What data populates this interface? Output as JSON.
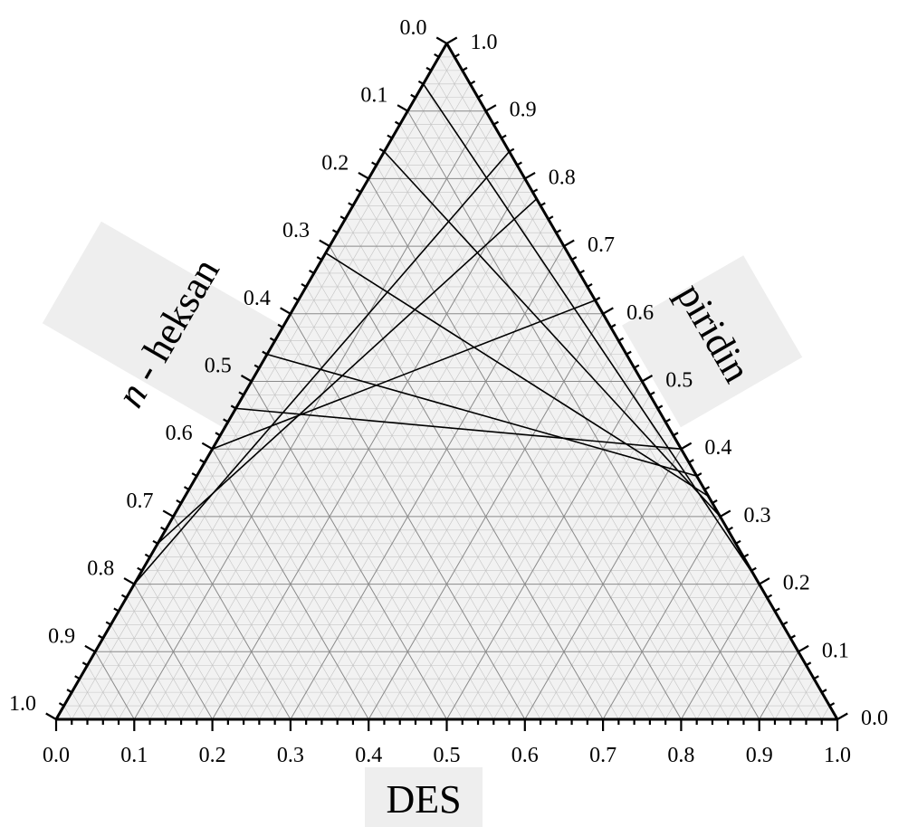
{
  "chart_data": {
    "type": "ternary",
    "axes": {
      "bottom": {
        "title": "DES",
        "ticks": [
          "0.0",
          "0.1",
          "0.2",
          "0.3",
          "0.4",
          "0.5",
          "0.6",
          "0.7",
          "0.8",
          "0.9",
          "1.0"
        ]
      },
      "left": {
        "title_italic": "n",
        "title_rest": " - heksan",
        "ticks": [
          "0.0",
          "0.1",
          "0.2",
          "0.3",
          "0.4",
          "0.5",
          "0.6",
          "0.7",
          "0.8",
          "0.9",
          "1.0"
        ]
      },
      "right": {
        "title": "piridin",
        "ticks": [
          "0.0",
          "0.1",
          "0.2",
          "0.3",
          "0.4",
          "0.5",
          "0.6",
          "0.7",
          "0.8",
          "0.9",
          "1.0"
        ]
      }
    },
    "grid": true,
    "tie_lines": [
      {
        "left": {
          "heksan": 0.8,
          "piridin": 0.2
        },
        "right": {
          "DES": 0.16,
          "piridin": 0.84
        }
      },
      {
        "left": {
          "heksan": 0.74,
          "piridin": 0.26
        },
        "right": {
          "DES": 0.23,
          "piridin": 0.77
        }
      },
      {
        "left": {
          "heksan": 0.6,
          "piridin": 0.4
        },
        "right": {
          "DES": 0.38,
          "piridin": 0.62
        }
      },
      {
        "left": {
          "heksan": 0.54,
          "piridin": 0.46
        },
        "right": {
          "DES": 0.6,
          "piridin": 0.4
        }
      },
      {
        "left": {
          "heksan": 0.46,
          "piridin": 0.54
        },
        "right": {
          "DES": 0.64,
          "piridin": 0.36
        }
      },
      {
        "left": {
          "heksan": 0.31,
          "piridin": 0.69
        },
        "right": {
          "DES": 0.67,
          "piridin": 0.33
        }
      },
      {
        "left": {
          "heksan": 0.16,
          "piridin": 0.84
        },
        "right": {
          "DES": 0.7,
          "piridin": 0.3
        }
      },
      {
        "left": {
          "heksan": 0.06,
          "piridin": 0.94
        },
        "right": {
          "DES": 0.79,
          "piridin": 0.21
        }
      },
      {
        "left": {
          "heksan": 0.0,
          "piridin": 1.0
        },
        "right": {
          "DES": 0.89,
          "piridin": 0.11
        }
      }
    ]
  }
}
